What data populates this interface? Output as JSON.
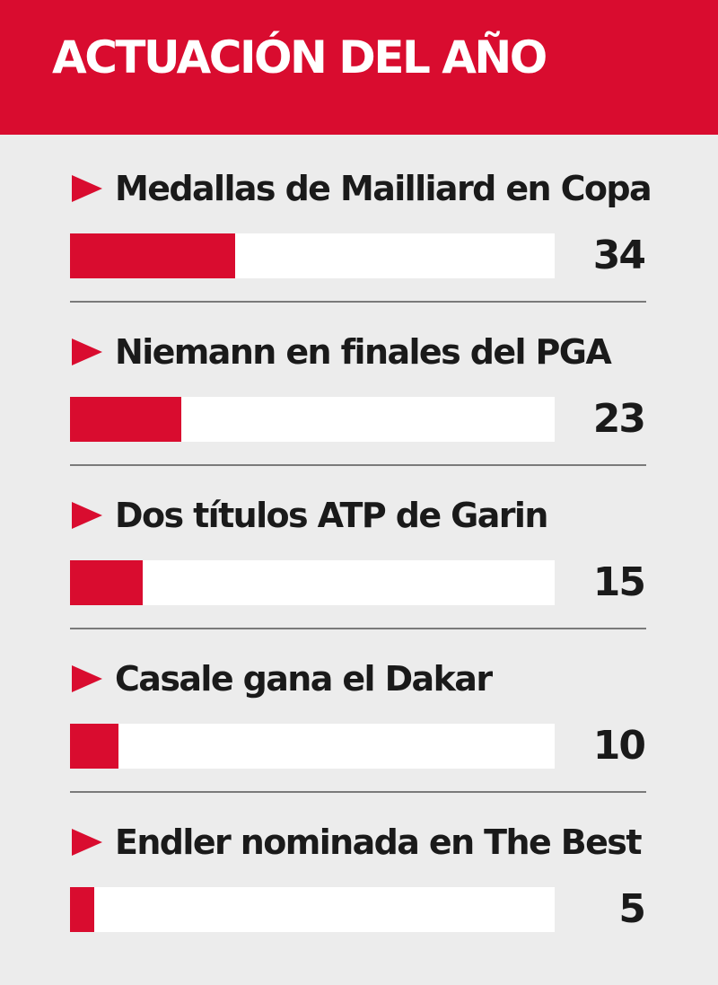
{
  "header": {
    "title": "ACTUACIÓN DEL AÑO"
  },
  "colors": {
    "accent": "#d90c2f",
    "background": "#ececec",
    "track": "#ffffff",
    "text": "#1a1a1a",
    "divider": "#7a7a7a"
  },
  "chart_data": {
    "type": "bar",
    "orientation": "horizontal",
    "title": "ACTUACIÓN DEL AÑO",
    "categories": [
      "Medallas de Mailliard en Copa",
      "Niemann en finales del PGA",
      "Dos títulos ATP de Garin",
      "Casale gana el Dakar",
      "Endler nominada en The Best"
    ],
    "values": [
      34,
      23,
      15,
      10,
      5
    ],
    "xlim": [
      0,
      100
    ],
    "grid": false,
    "data_labels": [
      "34",
      "23",
      "15",
      "10",
      "5"
    ]
  }
}
